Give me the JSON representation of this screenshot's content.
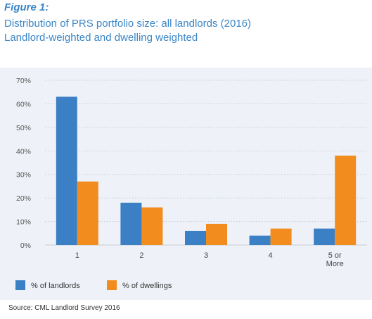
{
  "figure_label": "Figure 1:",
  "title_line1": "Distribution of PRS portfolio size: all landlords (2016)",
  "title_line2": "Landlord-weighted and dwelling weighted",
  "source": "Source: CML Landlord Survey 2016",
  "colors": {
    "landlords": "#3b7fc4",
    "dwellings": "#f28c1e",
    "title": "#3b86c6",
    "panel": "#eef2f8",
    "grid": "#c5cbd3"
  },
  "chart_data": {
    "type": "bar",
    "categories": [
      "1",
      "2",
      "3",
      "4",
      "5 or\nMore"
    ],
    "series": [
      {
        "name": "% of landlords",
        "values": [
          63,
          18,
          6,
          4,
          7
        ]
      },
      {
        "name": "% of dwellings",
        "values": [
          27,
          16,
          9,
          7,
          38
        ]
      }
    ],
    "ylim": [
      0,
      70
    ],
    "yticks": [
      "0%",
      "10%",
      "20%",
      "30%",
      "40%",
      "50%",
      "60%",
      "70%"
    ],
    "ytick_values": [
      0,
      10,
      20,
      30,
      40,
      50,
      60,
      70
    ],
    "grid": true,
    "legend_position": "bottom-left",
    "xlabel": "",
    "ylabel": ""
  }
}
